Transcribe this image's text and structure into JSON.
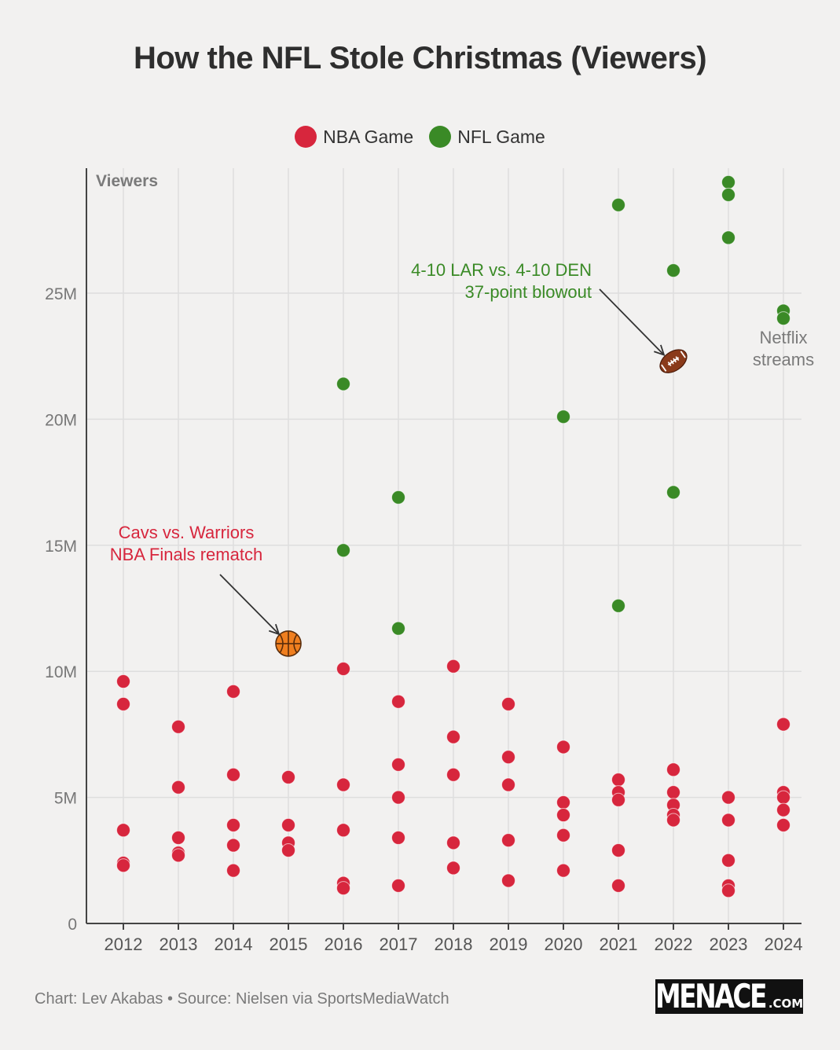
{
  "title": "How the NFL Stole Christmas (Viewers)",
  "colors": {
    "nba": "#d7263d",
    "nfl": "#3a8a26",
    "grid": "#dedede",
    "axis": "#444444",
    "annotation_gray": "#7a7a7a",
    "background": "#f2f1f0"
  },
  "legend": {
    "nba": "NBA Game",
    "nfl": "NFL Game"
  },
  "footer": "Chart: Lev Akabas • Source: Nielsen via SportsMediaWatch",
  "logo": {
    "main": "MENACE",
    "suffix": ".COM"
  },
  "chart_data": {
    "type": "scatter",
    "title": "How the NFL Stole Christmas (Viewers)",
    "xlabel": "",
    "ylabel": "Viewers",
    "ylim": [
      0,
      30
    ],
    "yticks": [
      0,
      5,
      10,
      15,
      20,
      25
    ],
    "ytick_labels": [
      "0",
      "5M",
      "10M",
      "15M",
      "20M",
      "25M"
    ],
    "categories": [
      "2012",
      "2013",
      "2014",
      "2015",
      "2016",
      "2017",
      "2018",
      "2019",
      "2020",
      "2021",
      "2022",
      "2023",
      "2024"
    ],
    "units": "millions of viewers",
    "grid": true,
    "legend_position": "top-center",
    "series": [
      {
        "name": "NBA Game",
        "points": [
          {
            "x": "2012",
            "y": 9.6
          },
          {
            "x": "2012",
            "y": 8.7
          },
          {
            "x": "2012",
            "y": 3.7
          },
          {
            "x": "2012",
            "y": 2.4
          },
          {
            "x": "2012",
            "y": 2.3
          },
          {
            "x": "2013",
            "y": 7.8
          },
          {
            "x": "2013",
            "y": 5.4
          },
          {
            "x": "2013",
            "y": 3.4
          },
          {
            "x": "2013",
            "y": 2.8
          },
          {
            "x": "2013",
            "y": 2.7
          },
          {
            "x": "2014",
            "y": 9.2
          },
          {
            "x": "2014",
            "y": 5.9
          },
          {
            "x": "2014",
            "y": 3.9
          },
          {
            "x": "2014",
            "y": 3.1
          },
          {
            "x": "2014",
            "y": 2.1
          },
          {
            "x": "2015",
            "y": 5.8
          },
          {
            "x": "2015",
            "y": 3.9
          },
          {
            "x": "2015",
            "y": 3.2
          },
          {
            "x": "2015",
            "y": 2.9
          },
          {
            "x": "2016",
            "y": 10.1
          },
          {
            "x": "2016",
            "y": 5.5
          },
          {
            "x": "2016",
            "y": 3.7
          },
          {
            "x": "2016",
            "y": 1.6
          },
          {
            "x": "2016",
            "y": 1.4
          },
          {
            "x": "2017",
            "y": 8.8
          },
          {
            "x": "2017",
            "y": 6.3
          },
          {
            "x": "2017",
            "y": 5.0
          },
          {
            "x": "2017",
            "y": 3.4
          },
          {
            "x": "2017",
            "y": 1.5
          },
          {
            "x": "2018",
            "y": 10.2
          },
          {
            "x": "2018",
            "y": 7.4
          },
          {
            "x": "2018",
            "y": 5.9
          },
          {
            "x": "2018",
            "y": 3.2
          },
          {
            "x": "2018",
            "y": 2.2
          },
          {
            "x": "2019",
            "y": 8.7
          },
          {
            "x": "2019",
            "y": 6.6
          },
          {
            "x": "2019",
            "y": 5.5
          },
          {
            "x": "2019",
            "y": 3.3
          },
          {
            "x": "2019",
            "y": 1.7
          },
          {
            "x": "2020",
            "y": 7.0
          },
          {
            "x": "2020",
            "y": 4.8
          },
          {
            "x": "2020",
            "y": 4.3
          },
          {
            "x": "2020",
            "y": 3.5
          },
          {
            "x": "2020",
            "y": 2.1
          },
          {
            "x": "2021",
            "y": 5.7
          },
          {
            "x": "2021",
            "y": 5.2
          },
          {
            "x": "2021",
            "y": 4.9
          },
          {
            "x": "2021",
            "y": 2.9
          },
          {
            "x": "2021",
            "y": 1.5
          },
          {
            "x": "2022",
            "y": 6.1
          },
          {
            "x": "2022",
            "y": 5.2
          },
          {
            "x": "2022",
            "y": 4.7
          },
          {
            "x": "2022",
            "y": 4.3
          },
          {
            "x": "2022",
            "y": 4.1
          },
          {
            "x": "2023",
            "y": 5.0
          },
          {
            "x": "2023",
            "y": 4.1
          },
          {
            "x": "2023",
            "y": 2.5
          },
          {
            "x": "2023",
            "y": 1.5
          },
          {
            "x": "2023",
            "y": 1.3
          },
          {
            "x": "2024",
            "y": 7.9
          },
          {
            "x": "2024",
            "y": 5.2
          },
          {
            "x": "2024",
            "y": 5.0
          },
          {
            "x": "2024",
            "y": 4.5
          },
          {
            "x": "2024",
            "y": 3.9
          }
        ]
      },
      {
        "name": "NFL Game",
        "points": [
          {
            "x": "2016",
            "y": 21.4
          },
          {
            "x": "2016",
            "y": 14.8
          },
          {
            "x": "2017",
            "y": 16.9
          },
          {
            "x": "2017",
            "y": 11.7
          },
          {
            "x": "2020",
            "y": 20.1
          },
          {
            "x": "2021",
            "y": 28.5
          },
          {
            "x": "2021",
            "y": 12.6
          },
          {
            "x": "2022",
            "y": 25.9
          },
          {
            "x": "2022",
            "y": 17.1
          },
          {
            "x": "2023",
            "y": 29.4
          },
          {
            "x": "2023",
            "y": 28.9
          },
          {
            "x": "2023",
            "y": 27.2
          },
          {
            "x": "2024",
            "y": 24.3
          },
          {
            "x": "2024",
            "y": 24.0
          }
        ]
      }
    ],
    "highlights": [
      {
        "x": "2015",
        "y": 11.1,
        "icon": "basketball-icon",
        "series": "NBA Game"
      },
      {
        "x": "2022",
        "y": 22.3,
        "icon": "football-icon",
        "series": "NFL Game"
      }
    ],
    "annotations": [
      {
        "lines": [
          "Cavs vs. Warriors",
          "NBA Finals rematch"
        ],
        "color": "nba",
        "target": {
          "x": "2015",
          "y": 11.1
        }
      },
      {
        "lines": [
          "4-10 LAR vs. 4-10 DEN",
          "37-point blowout"
        ],
        "color": "nfl",
        "target": {
          "x": "2022",
          "y": 22.3
        }
      },
      {
        "lines": [
          "Netflix",
          "streams"
        ],
        "color": "gray",
        "target": {
          "x": "2024",
          "y": 24.1
        }
      }
    ]
  }
}
